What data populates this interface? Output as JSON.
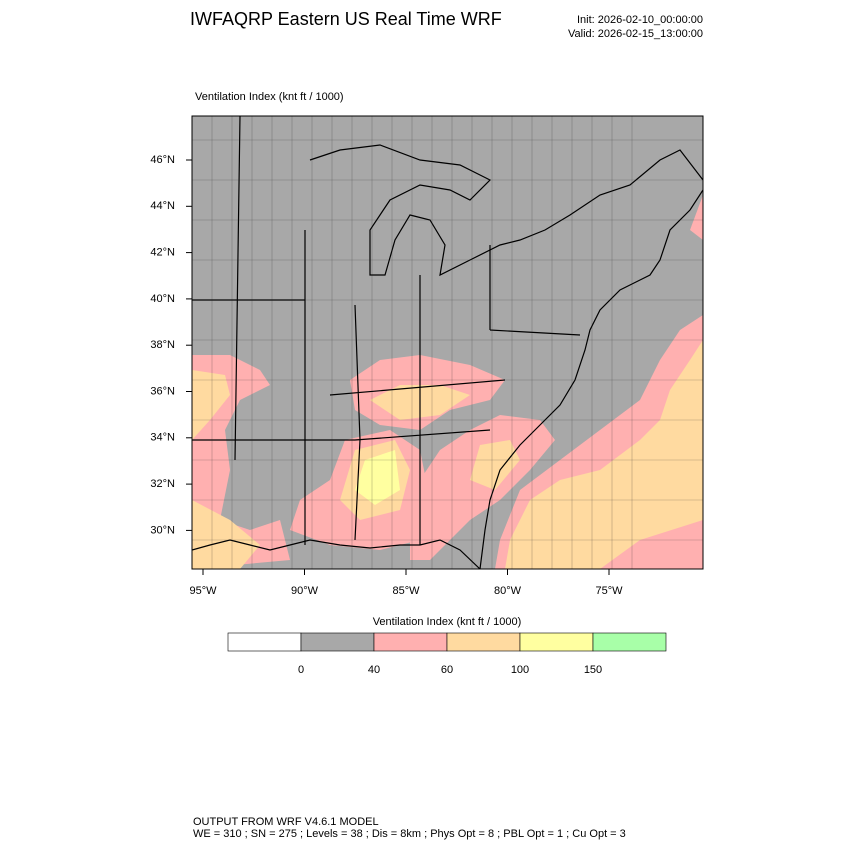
{
  "header": {
    "title": "IWFAQRP Eastern US Real Time WRF",
    "init": "Init: 2026-02-10_00:00:00",
    "valid": "Valid: 2026-02-15_13:00:00"
  },
  "map": {
    "panel_title": "Ventilation Index   (knt ft / 1000)",
    "lat_labels": [
      {
        "value": 46,
        "label": "46°N"
      },
      {
        "value": 44,
        "label": "44°N"
      },
      {
        "value": 42,
        "label": "42°N"
      },
      {
        "value": 40,
        "label": "40°N"
      },
      {
        "value": 38,
        "label": "38°N"
      },
      {
        "value": 36,
        "label": "36°N"
      },
      {
        "value": 34,
        "label": "34°N"
      },
      {
        "value": 32,
        "label": "32°N"
      },
      {
        "value": 30,
        "label": "30°N"
      }
    ],
    "lon_labels": [
      {
        "value": -95,
        "label": "95°W"
      },
      {
        "value": -90,
        "label": "90°W"
      },
      {
        "value": -85,
        "label": "85°W"
      },
      {
        "value": -80,
        "label": "80°W"
      },
      {
        "value": -75,
        "label": "75°W"
      }
    ]
  },
  "colorbar": {
    "title": "Ventilation Index  (knt ft / 1000)",
    "colors": [
      "#ffffff",
      "#a8a8a8",
      "#ffb0b0",
      "#ffdaa0",
      "#ffffa0",
      "#a8ffa8"
    ],
    "ticks": [
      0,
      40,
      60,
      100,
      150
    ]
  },
  "footer": {
    "line1": "OUTPUT FROM WRF V4.6.1 MODEL",
    "line2": "WE = 310 ; SN = 275 ; Levels = 38 ; Dis = 8km ; Phys Opt = 8 ; PBL Opt = 1 ; Cu Opt = 3"
  }
}
